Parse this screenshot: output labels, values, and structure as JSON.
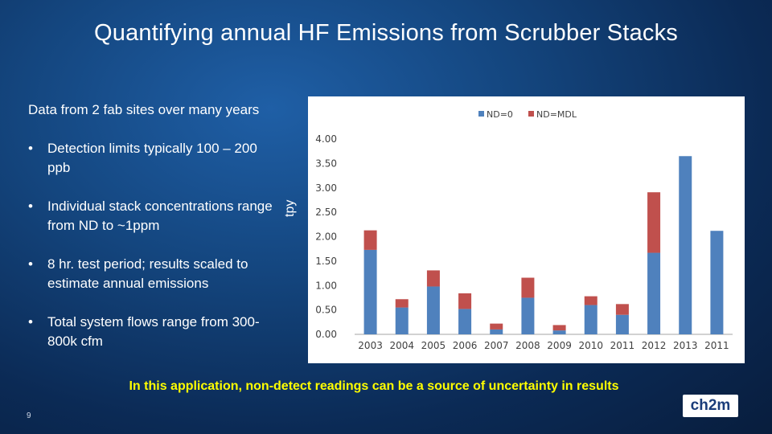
{
  "title": "Quantifying annual HF Emissions from Scrubber Stacks",
  "intro": "Data from 2 fab sites over many years",
  "bullets": [
    "Detection limits typically 100 – 200 ppb",
    "Individual stack concentrations range from ND to ~1ppm",
    "8 hr. test period; results scaled to estimate annual emissions",
    "Total system flows range from 300-800k cfm"
  ],
  "bullet_glyph": "•",
  "y_axis_label": "tpy",
  "footer_note": "In this application, non-detect readings can be a source of uncertainty in results",
  "page_number": "9",
  "logo_text": "ch2m",
  "colors": {
    "nd0": "#4f81bd",
    "ndmdl": "#c0504d",
    "highlight": "#ffff00"
  },
  "chart_data": {
    "type": "bar",
    "stacked": true,
    "categories": [
      "2003",
      "2004",
      "2005",
      "2006",
      "2007",
      "2008",
      "2009",
      "2010",
      "2011",
      "2012",
      "2013",
      "2011"
    ],
    "series": [
      {
        "name": "ND=0",
        "values": [
          1.73,
          0.55,
          0.98,
          0.52,
          0.1,
          0.75,
          0.08,
          0.6,
          0.4,
          1.67,
          3.65,
          2.12
        ]
      },
      {
        "name": "ND=MDL",
        "values": [
          0.4,
          0.17,
          0.33,
          0.32,
          0.12,
          0.41,
          0.11,
          0.18,
          0.22,
          1.24,
          0.0,
          0.0
        ]
      }
    ],
    "yticks": [
      "0.00",
      "0.50",
      "1.00",
      "1.50",
      "2.00",
      "2.50",
      "3.00",
      "3.50",
      "4.00"
    ],
    "ylim": [
      0,
      4
    ],
    "ylabel": "tpy",
    "legend": "top-center",
    "grid": false
  }
}
